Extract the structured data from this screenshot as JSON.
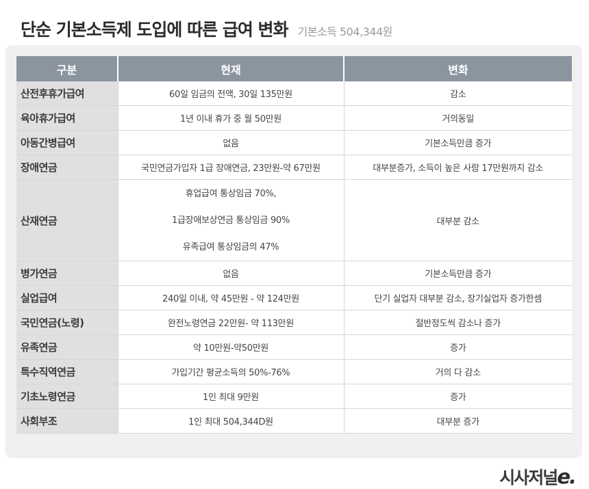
{
  "title": "단순 기본소득제 도입에 따른 급여 변화",
  "subtitle": "기본소득 504,344원",
  "table": {
    "headers": [
      "구분",
      "현재",
      "변화"
    ],
    "rows": [
      {
        "category": "산전후휴가급여",
        "current": [
          "60일 임금의 전액, 30일 135만원"
        ],
        "change": "감소"
      },
      {
        "category": "육아휴가급여",
        "current": [
          "1년 이내 휴가 중 월 50만원"
        ],
        "change": "거의동일"
      },
      {
        "category": "아동간병급여",
        "current": [
          "없음"
        ],
        "change": "기본소득만큼 증가"
      },
      {
        "category": "장애연금",
        "current": [
          "국민연금가입자 1급 장애연금, 23만원-약 67만원"
        ],
        "change": "대부분증가, 소득이 높은 사람 17만원까지 감소"
      },
      {
        "category": "산재연금",
        "current": [
          "휴업급여 통상임금 70%,",
          "1급장애보상연금 통상임금 90%",
          "유족급여 통상임금의 47%"
        ],
        "change": "대부분 감소"
      },
      {
        "category": "병가연금",
        "current": [
          "없음"
        ],
        "change": "기본소득만큼 증가"
      },
      {
        "category": "실업급여",
        "current": [
          "240일 이내, 약 45만원 - 약 124만원"
        ],
        "change": "단기 실업자 대부분 감소, 장기실업자 증가한셈"
      },
      {
        "category": "국민연금(노령)",
        "current": [
          "완전노령연금 22만원- 약 113만원"
        ],
        "change": "절반정도씩 감소나 증가"
      },
      {
        "category": "유족연금",
        "current": [
          "약 10만원-약50만원"
        ],
        "change": "증가"
      },
      {
        "category": "특수직역연금",
        "current": [
          "가입기간 평균소득의 50%-76%"
        ],
        "change": "거의 다 감소"
      },
      {
        "category": "기초노령연금",
        "current": [
          "1인 최대 9만원"
        ],
        "change": "증가"
      },
      {
        "category": "사회부조",
        "current": [
          "1인 최대 504,344D원"
        ],
        "change": "대부분 증가"
      }
    ]
  },
  "logo": {
    "text": "시사저널",
    "mark": "e."
  }
}
